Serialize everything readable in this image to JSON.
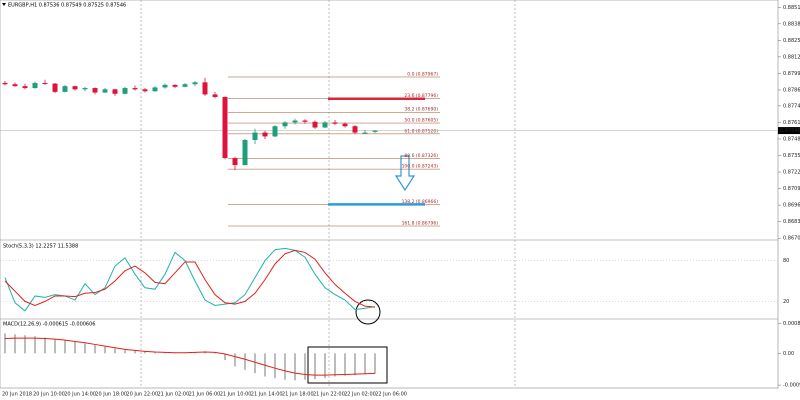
{
  "chart_data": [
    {
      "type": "candlestick",
      "title": "EURGBP,H1 0.87536 0.87549 0.87525 0.87546",
      "up_color": "#1f9e7a",
      "down_color": "#dc143c",
      "open": [
        0.8792,
        0.8791,
        0.87895,
        0.8788,
        0.8792,
        0.87915,
        0.8785,
        0.87895,
        0.8787,
        0.8788,
        0.87845,
        0.8787,
        0.87835,
        0.8788,
        0.8787,
        0.87855,
        0.87885,
        0.87905,
        0.8789,
        0.8791,
        0.87925,
        0.8783,
        0.8781,
        0.8733,
        0.87275,
        0.87472,
        0.8753,
        0.875,
        0.8758,
        0.8761,
        0.87625,
        0.87615,
        0.8757,
        0.8761,
        0.876,
        0.8758,
        0.8753,
        0.87536
      ],
      "high": [
        0.87935,
        0.87925,
        0.87915,
        0.8793,
        0.87945,
        0.8792,
        0.87905,
        0.879,
        0.8789,
        0.87885,
        0.8788,
        0.87875,
        0.8789,
        0.879,
        0.8788,
        0.87895,
        0.87915,
        0.8791,
        0.8792,
        0.87935,
        0.8796,
        0.8785,
        0.87815,
        0.8734,
        0.8748,
        0.8756,
        0.87545,
        0.8759,
        0.8762,
        0.8764,
        0.87635,
        0.87625,
        0.8762,
        0.8763,
        0.8761,
        0.8759,
        0.8755,
        0.87549
      ],
      "low": [
        0.879,
        0.8789,
        0.8787,
        0.87875,
        0.87905,
        0.8784,
        0.87845,
        0.8786,
        0.87855,
        0.8783,
        0.8784,
        0.8782,
        0.8783,
        0.8786,
        0.87845,
        0.8785,
        0.87875,
        0.8788,
        0.87885,
        0.87895,
        0.8782,
        0.878,
        0.8732,
        0.87236,
        0.8727,
        0.8744,
        0.8748,
        0.87495,
        0.8756,
        0.87595,
        0.876,
        0.8756,
        0.87565,
        0.8759,
        0.8757,
        0.8752,
        0.8752,
        0.87525
      ],
      "close": [
        0.8791,
        0.87895,
        0.8788,
        0.8792,
        0.87915,
        0.8785,
        0.87895,
        0.8787,
        0.8788,
        0.87845,
        0.8787,
        0.87835,
        0.8788,
        0.8787,
        0.87855,
        0.87885,
        0.87905,
        0.8789,
        0.8791,
        0.87925,
        0.8783,
        0.8781,
        0.8733,
        0.87275,
        0.87472,
        0.8753,
        0.875,
        0.8758,
        0.8761,
        0.87625,
        0.87615,
        0.8757,
        0.8761,
        0.876,
        0.8758,
        0.8753,
        0.8753,
        0.87546
      ],
      "last_price": 0.87546,
      "ylim": [
        0.86686,
        0.88572
      ],
      "yticks": [
        {
          "value": 0.88515,
          "label": "0.88515"
        },
        {
          "value": 0.88385,
          "label": "0.88385"
        },
        {
          "value": 0.88255,
          "label": "0.88255"
        },
        {
          "value": 0.88125,
          "label": "0.88125"
        },
        {
          "value": 0.87995,
          "label": "0.87995"
        },
        {
          "value": 0.87865,
          "label": "0.87865"
        },
        {
          "value": 0.8774,
          "label": "0.87740"
        },
        {
          "value": 0.8761,
          "label": "0.87610"
        },
        {
          "value": 0.8748,
          "label": "0.87480"
        },
        {
          "value": 0.8735,
          "label": "0.87350"
        },
        {
          "value": 0.8722,
          "label": "0.87220"
        },
        {
          "value": 0.8709,
          "label": "0.87090"
        },
        {
          "value": 0.8696,
          "label": "0.86960"
        },
        {
          "value": 0.8683,
          "label": "0.86830"
        },
        {
          "value": 0.867,
          "label": "0.86700"
        }
      ],
      "fib_levels": [
        {
          "label": "0.0 (0.87967)",
          "value": 0.87967
        },
        {
          "label": "23.6 (0.87796)",
          "value": 0.87796
        },
        {
          "label": "38.2 (0.87690)",
          "value": 0.8769
        },
        {
          "label": "50.0 (0.87605)",
          "value": 0.87605
        },
        {
          "label": "61.8 (0.87520)",
          "value": 0.8752
        },
        {
          "label": "88.6 (0.87326)",
          "value": 0.87326
        },
        {
          "label": "100.0 (0.87243)",
          "value": 0.87243
        },
        {
          "label": "138.2 (0.86966)",
          "value": 0.86966
        },
        {
          "label": "161.8 (0.86796)",
          "value": 0.86796
        }
      ]
    },
    {
      "type": "line",
      "title": "Stoch(5,3,3) 12.2257 11.5388",
      "series": [
        {
          "name": "Main",
          "color": "#20b2aa",
          "values": [
            55,
            18,
            6,
            28,
            26,
            30,
            28,
            22,
            46,
            30,
            40,
            72,
            84,
            60,
            40,
            38,
            60,
            92,
            80,
            50,
            22,
            14,
            16,
            18,
            30,
            55,
            80,
            96,
            98,
            95,
            85,
            60,
            40,
            30,
            22,
            8,
            10,
            12.2257
          ]
        },
        {
          "name": "Signal",
          "color": "#e0201b",
          "values": [
            50,
            35,
            20,
            14,
            20,
            28,
            28,
            27,
            32,
            33,
            38,
            50,
            65,
            72,
            62,
            48,
            46,
            62,
            78,
            78,
            52,
            30,
            18,
            16,
            20,
            32,
            52,
            75,
            90,
            95,
            92,
            82,
            62,
            45,
            32,
            20,
            13,
            11.5388
          ]
        }
      ],
      "ylim": [
        0,
        100
      ],
      "yticks": [
        80,
        20
      ]
    },
    {
      "type": "histogram_line",
      "title": "MACD(12,26,9) -0.000615 -0.000606",
      "series": [
        {
          "name": "MACD",
          "color": "#7a7a7a",
          "values": [
            0.0006,
            0.00058,
            0.00055,
            0.00052,
            0.00048,
            0.00044,
            0.0004,
            0.00035,
            0.0003,
            0.00025,
            0.0002,
            0.00015,
            0.0001,
            8e-05,
            6e-05,
            4e-05,
            3e-05,
            2e-05,
            2e-05,
            4e-05,
            6e-05,
            2e-05,
            -0.0002,
            -0.0004,
            -0.0005,
            -0.0006,
            -0.0007,
            -0.00075,
            -0.0008,
            -0.00082,
            -0.0008,
            -0.00078,
            -0.00075,
            -0.0007,
            -0.00068,
            -0.00066,
            -0.00064,
            -0.000615
          ]
        },
        {
          "name": "Signal",
          "color": "#e0201b",
          "values": [
            0.00045,
            0.00046,
            0.00046,
            0.00046,
            0.00045,
            0.00043,
            0.0004,
            0.00036,
            0.00032,
            0.00027,
            0.00022,
            0.00017,
            0.00012,
            9e-05,
            6e-05,
            4e-05,
            3e-05,
            2e-05,
            2e-05,
            3e-05,
            4e-05,
            3e-05,
            -2e-05,
            -0.0001,
            -0.00018,
            -0.00027,
            -0.00036,
            -0.00045,
            -0.00053,
            -0.0006,
            -0.00064,
            -0.00066,
            -0.00066,
            -0.00065,
            -0.00064,
            -0.00063,
            -0.00062,
            -0.000606
          ]
        }
      ],
      "ylim": [
        -0.00105,
        0.00095
      ],
      "yticks": [
        0.000897,
        {
          "value": 0,
          "label": "0.00"
        },
        -0.000962
      ]
    }
  ],
  "time_axis": [
    "20 Jun 2018",
    "20 Jun 10:00",
    "20 Jun 14:00",
    "20 Jun 18:00",
    "20 Jun 22:00",
    "21 Jun 02:00",
    "21 Jun 06:00",
    "21 Jun 10:00",
    "21 Jun 14:00",
    "21 Jun 18:00",
    "21 Jun 22:00",
    "22 Jun 02:00",
    "22 Jun 06:00"
  ]
}
